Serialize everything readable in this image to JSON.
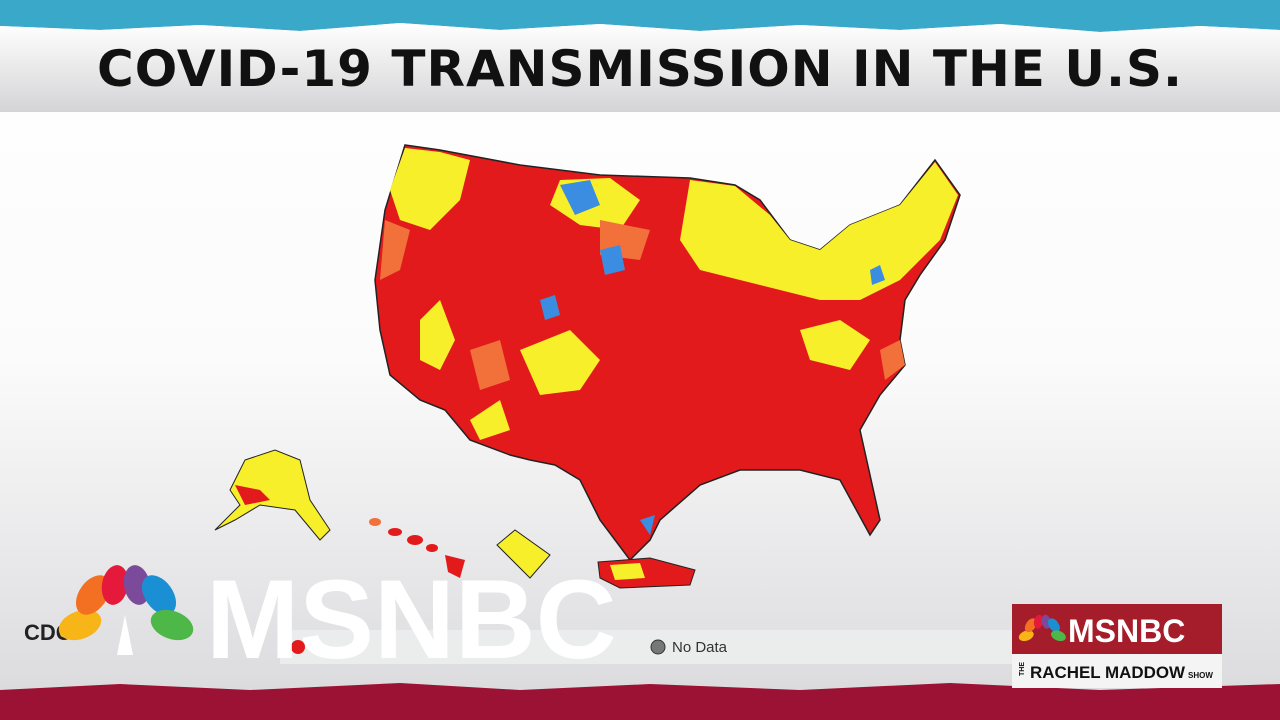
{
  "header": {
    "title": "COVID-19 TRANSMISSION IN THE U.S."
  },
  "map": {
    "source": "CDC",
    "legend": [
      {
        "label": "No Data"
      }
    ]
  },
  "watermark": {
    "network": "MSNBC"
  },
  "show_logo": {
    "network": "MSNBC",
    "show_prefix": "THE",
    "show_name": "RACHEL MADDOW",
    "show_suffix": "SHOW"
  }
}
